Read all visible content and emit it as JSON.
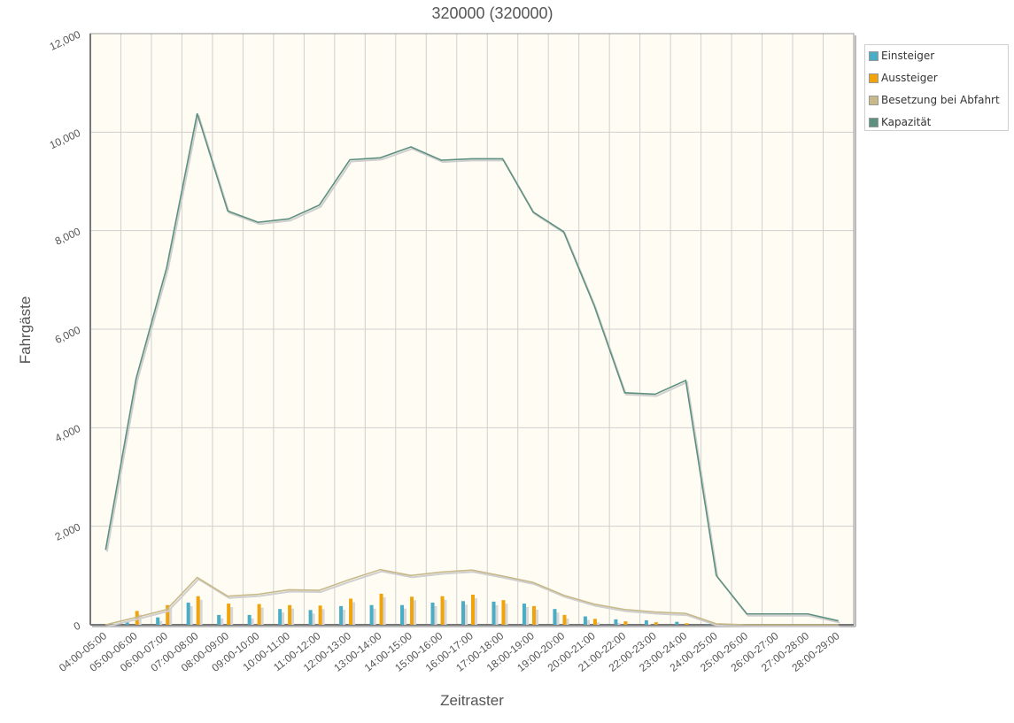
{
  "chart_data": {
    "type": "bar",
    "title": "320000 (320000)",
    "xlabel": "Zeitraster",
    "ylabel": "Fahrgäste",
    "ylim": [
      0,
      12000
    ],
    "yticks": [
      0,
      2000,
      4000,
      6000,
      8000,
      10000,
      12000
    ],
    "ytick_labels": [
      "0",
      "2,000",
      "4,000",
      "6,000",
      "8,000",
      "10,000",
      "12,000"
    ],
    "grid": true,
    "legend_position": "top-right",
    "categories": [
      "04:00-05:00",
      "05:00-06:00",
      "06:00-07:00",
      "07:00-08:00",
      "08:00-09:00",
      "09:00-10:00",
      "10:00-11:00",
      "11:00-12:00",
      "12:00-13:00",
      "13:00-14:00",
      "14:00-15:00",
      "15:00-16:00",
      "16:00-17:00",
      "17:00-18:00",
      "18:00-19:00",
      "19:00-20:00",
      "20:00-21:00",
      "21:00-22:00",
      "22:00-23:00",
      "23:00-24:00",
      "24:00-25:00",
      "25:00-26:00",
      "26:00-27:00",
      "27:00-28:00",
      "28:00-29:00"
    ],
    "series": [
      {
        "name": "Einsteiger",
        "type": "bar",
        "color": "#4bacc6",
        "values": [
          5,
          50,
          150,
          450,
          200,
          200,
          320,
          300,
          380,
          400,
          400,
          450,
          480,
          470,
          430,
          320,
          170,
          110,
          90,
          60,
          10,
          0,
          0,
          0,
          0
        ]
      },
      {
        "name": "Aussteiger",
        "type": "bar",
        "color": "#f0a30a",
        "values": [
          10,
          280,
          400,
          580,
          430,
          420,
          400,
          390,
          530,
          630,
          570,
          580,
          610,
          500,
          380,
          200,
          120,
          70,
          50,
          30,
          20,
          0,
          0,
          0,
          0
        ]
      },
      {
        "name": "Besetzung bei Abfahrt",
        "type": "line",
        "color": "#c8b98a",
        "values": [
          0,
          150,
          310,
          960,
          580,
          620,
          710,
          700,
          920,
          1120,
          1000,
          1070,
          1110,
          990,
          860,
          600,
          420,
          310,
          260,
          230,
          20,
          0,
          0,
          0,
          0
        ]
      },
      {
        "name": "Kapazität",
        "type": "line",
        "color": "#5e9080",
        "values": [
          1520,
          5000,
          7250,
          10380,
          8400,
          8170,
          8240,
          8520,
          9440,
          9480,
          9700,
          9430,
          9460,
          9460,
          8380,
          7980,
          6480,
          4710,
          4680,
          4960,
          1000,
          220,
          220,
          220,
          80
        ]
      }
    ],
    "colors": {
      "plot_background": "#fffdf3",
      "grid": "#cfcfcf",
      "axis": "#666666",
      "text": "#555555"
    }
  },
  "legend": [
    {
      "label": "Einsteiger",
      "color": "#4bacc6"
    },
    {
      "label": "Aussteiger",
      "color": "#f0a30a"
    },
    {
      "label": "Besetzung bei Abfahrt",
      "color": "#c8b98a"
    },
    {
      "label": "Kapazität",
      "color": "#5e9080"
    }
  ]
}
